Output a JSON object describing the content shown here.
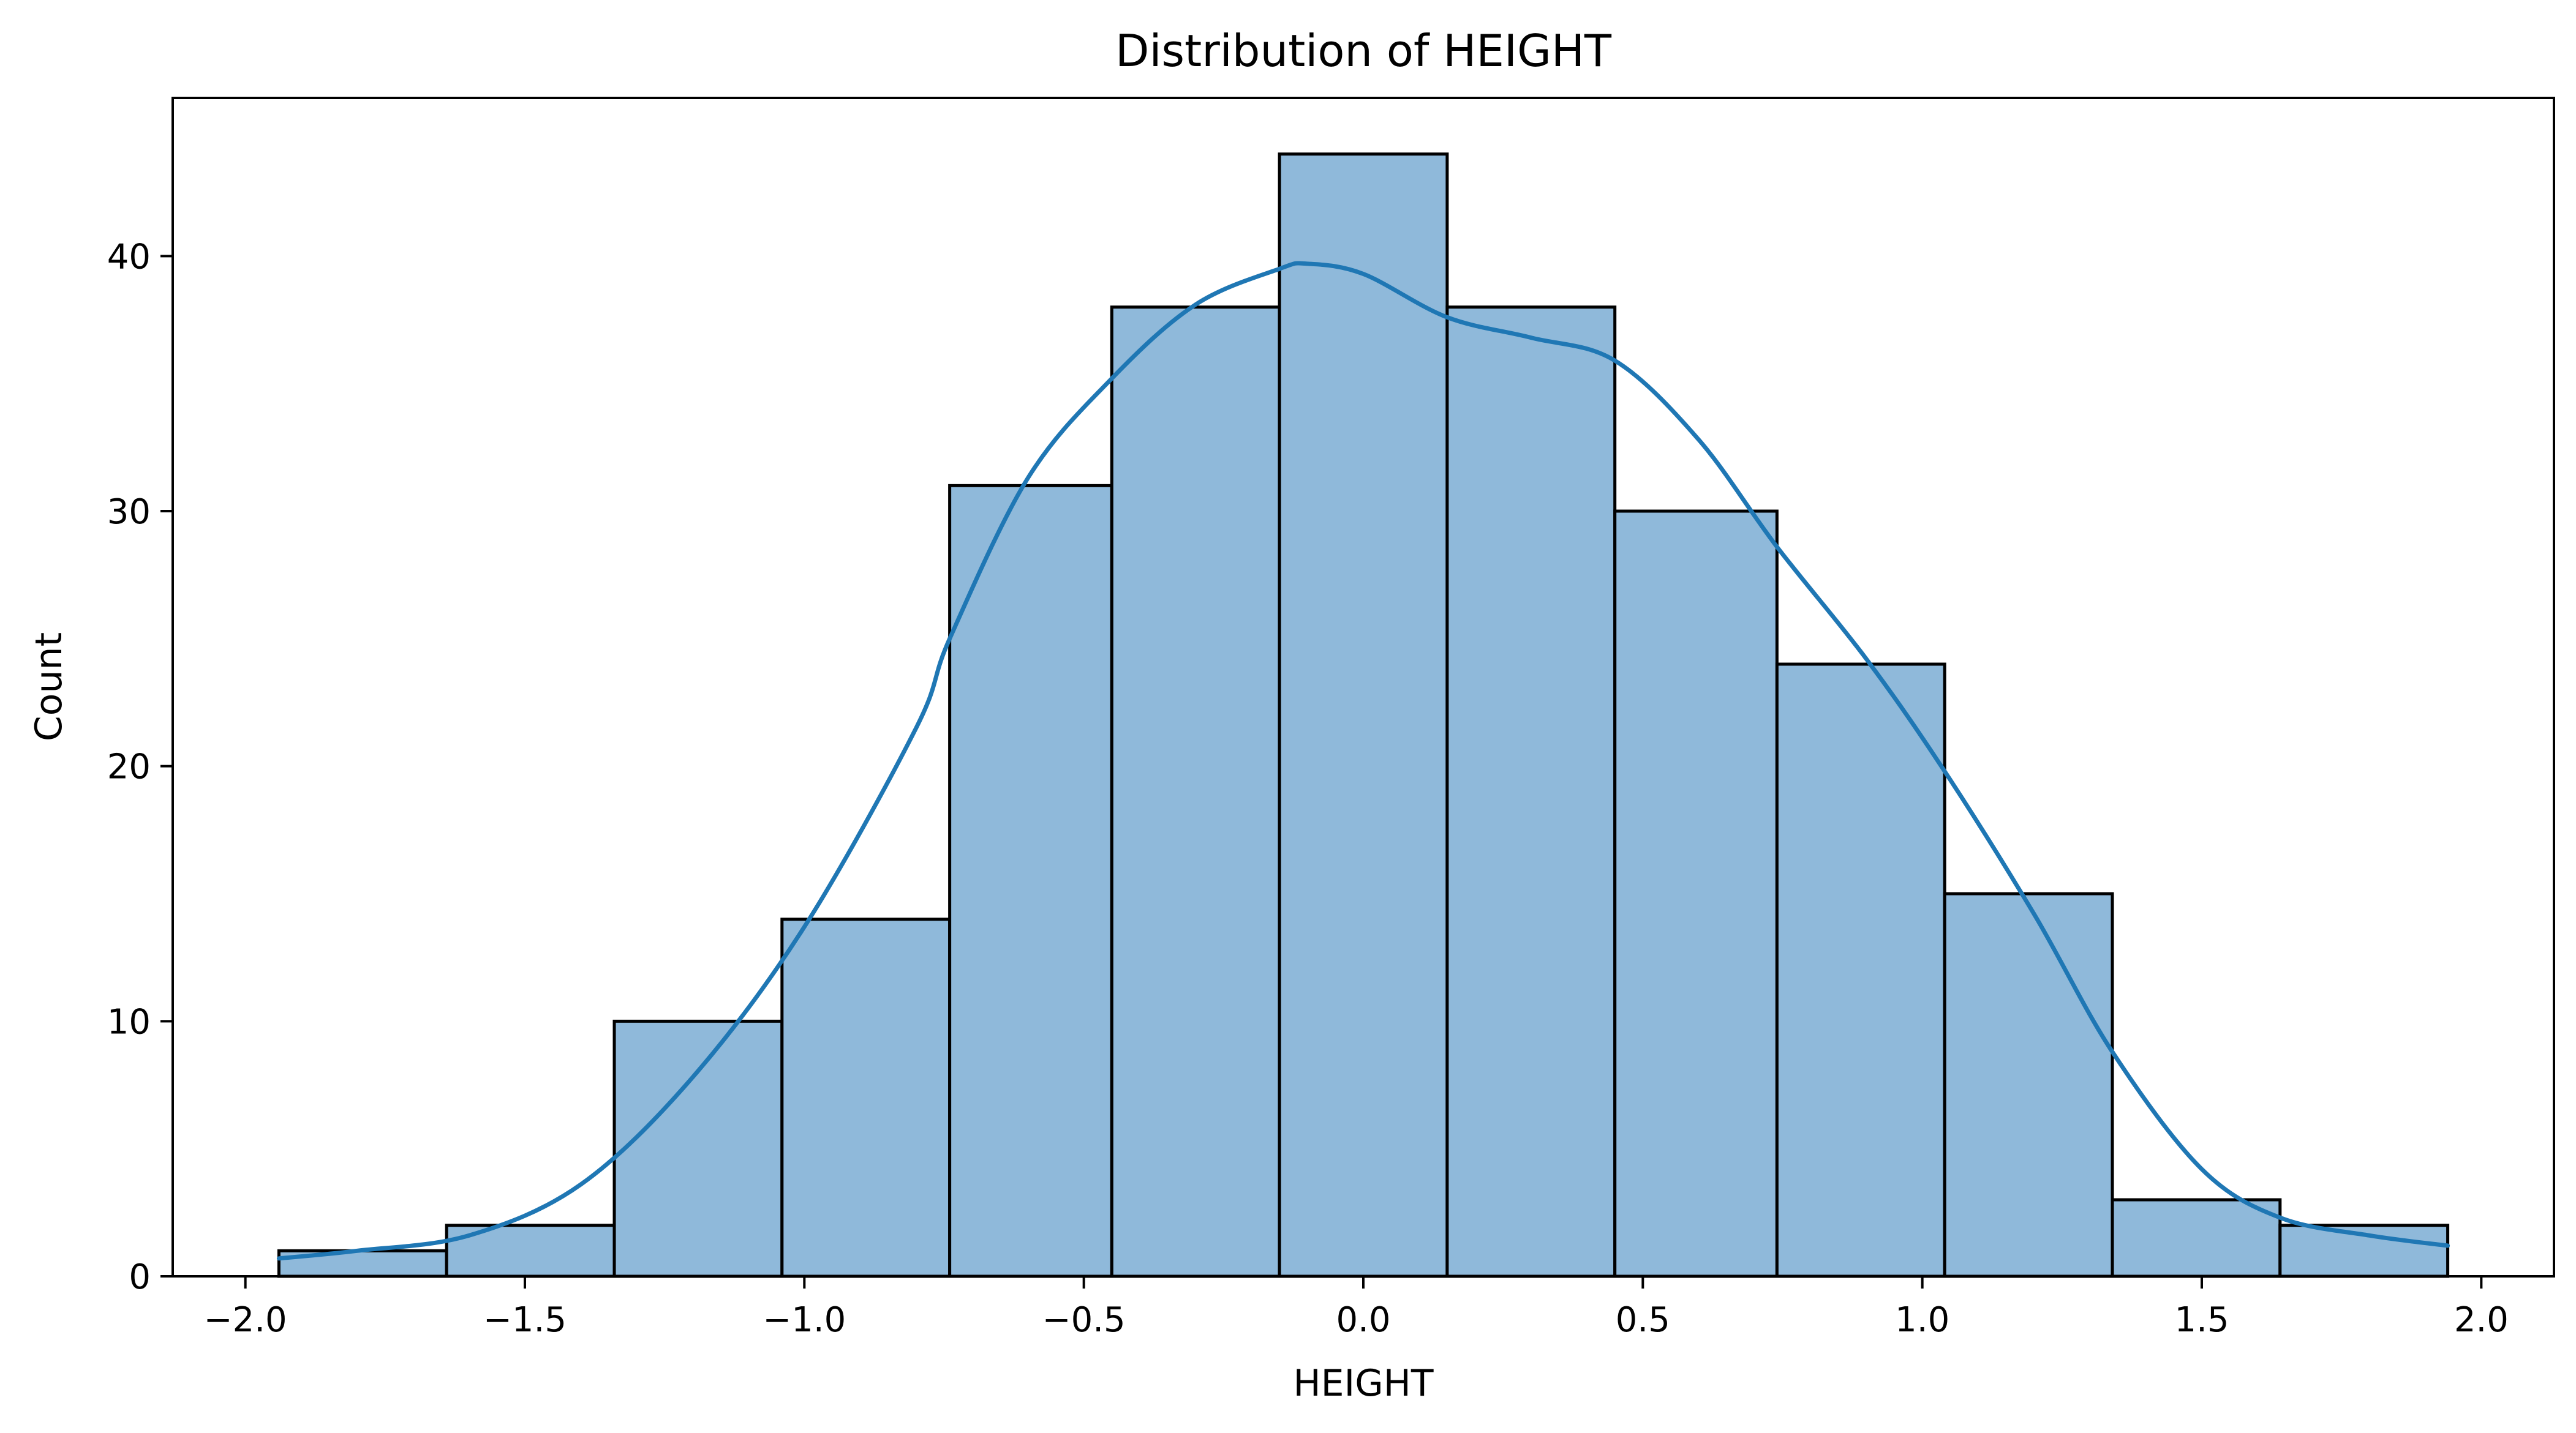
{
  "chart_data": {
    "type": "bar",
    "title": "Distribution of HEIGHT",
    "xlabel": "HEIGHT",
    "ylabel": "Count",
    "xlim": [
      -2.13,
      2.13
    ],
    "ylim": [
      0,
      46.2
    ],
    "grid": false,
    "bar_color": "#8fb9da",
    "line_color": "#1f77b4",
    "bin_edges": [
      -1.94,
      -1.64,
      -1.34,
      -1.04,
      -0.74,
      -0.45,
      -0.15,
      0.15,
      0.45,
      0.74,
      1.04,
      1.34,
      1.64,
      1.94
    ],
    "values": [
      1,
      2,
      10,
      14,
      31,
      38,
      44,
      38,
      30,
      24,
      15,
      3,
      2
    ],
    "x_ticks": [
      -2.0,
      -1.5,
      -1.0,
      -0.5,
      0.0,
      0.5,
      1.0,
      1.5,
      2.0
    ],
    "x_tick_labels": [
      "−2.0",
      "−1.5",
      "−1.0",
      "−0.5",
      "0.0",
      "0.5",
      "1.0",
      "1.5",
      "2.0"
    ],
    "y_ticks": [
      0,
      10,
      20,
      30,
      40
    ],
    "y_tick_labels": [
      "0",
      "10",
      "20",
      "30",
      "40"
    ],
    "kde": {
      "x": [
        -1.94,
        -1.8,
        -1.6,
        -1.4,
        -1.2,
        -1.0,
        -0.8,
        -0.74,
        -0.6,
        -0.45,
        -0.3,
        -0.15,
        -0.1,
        0.0,
        0.15,
        0.3,
        0.45,
        0.6,
        0.74,
        0.9,
        1.04,
        1.2,
        1.34,
        1.5,
        1.64,
        1.8,
        1.94
      ],
      "y": [
        0.7,
        1.0,
        1.6,
        3.6,
        7.8,
        13.7,
        21.5,
        25.0,
        31.3,
        35.2,
        38.1,
        39.5,
        39.7,
        39.3,
        37.6,
        36.8,
        35.9,
        32.8,
        28.6,
        24.2,
        19.8,
        14.2,
        8.8,
        4.2,
        2.3,
        1.6,
        1.2
      ]
    }
  }
}
